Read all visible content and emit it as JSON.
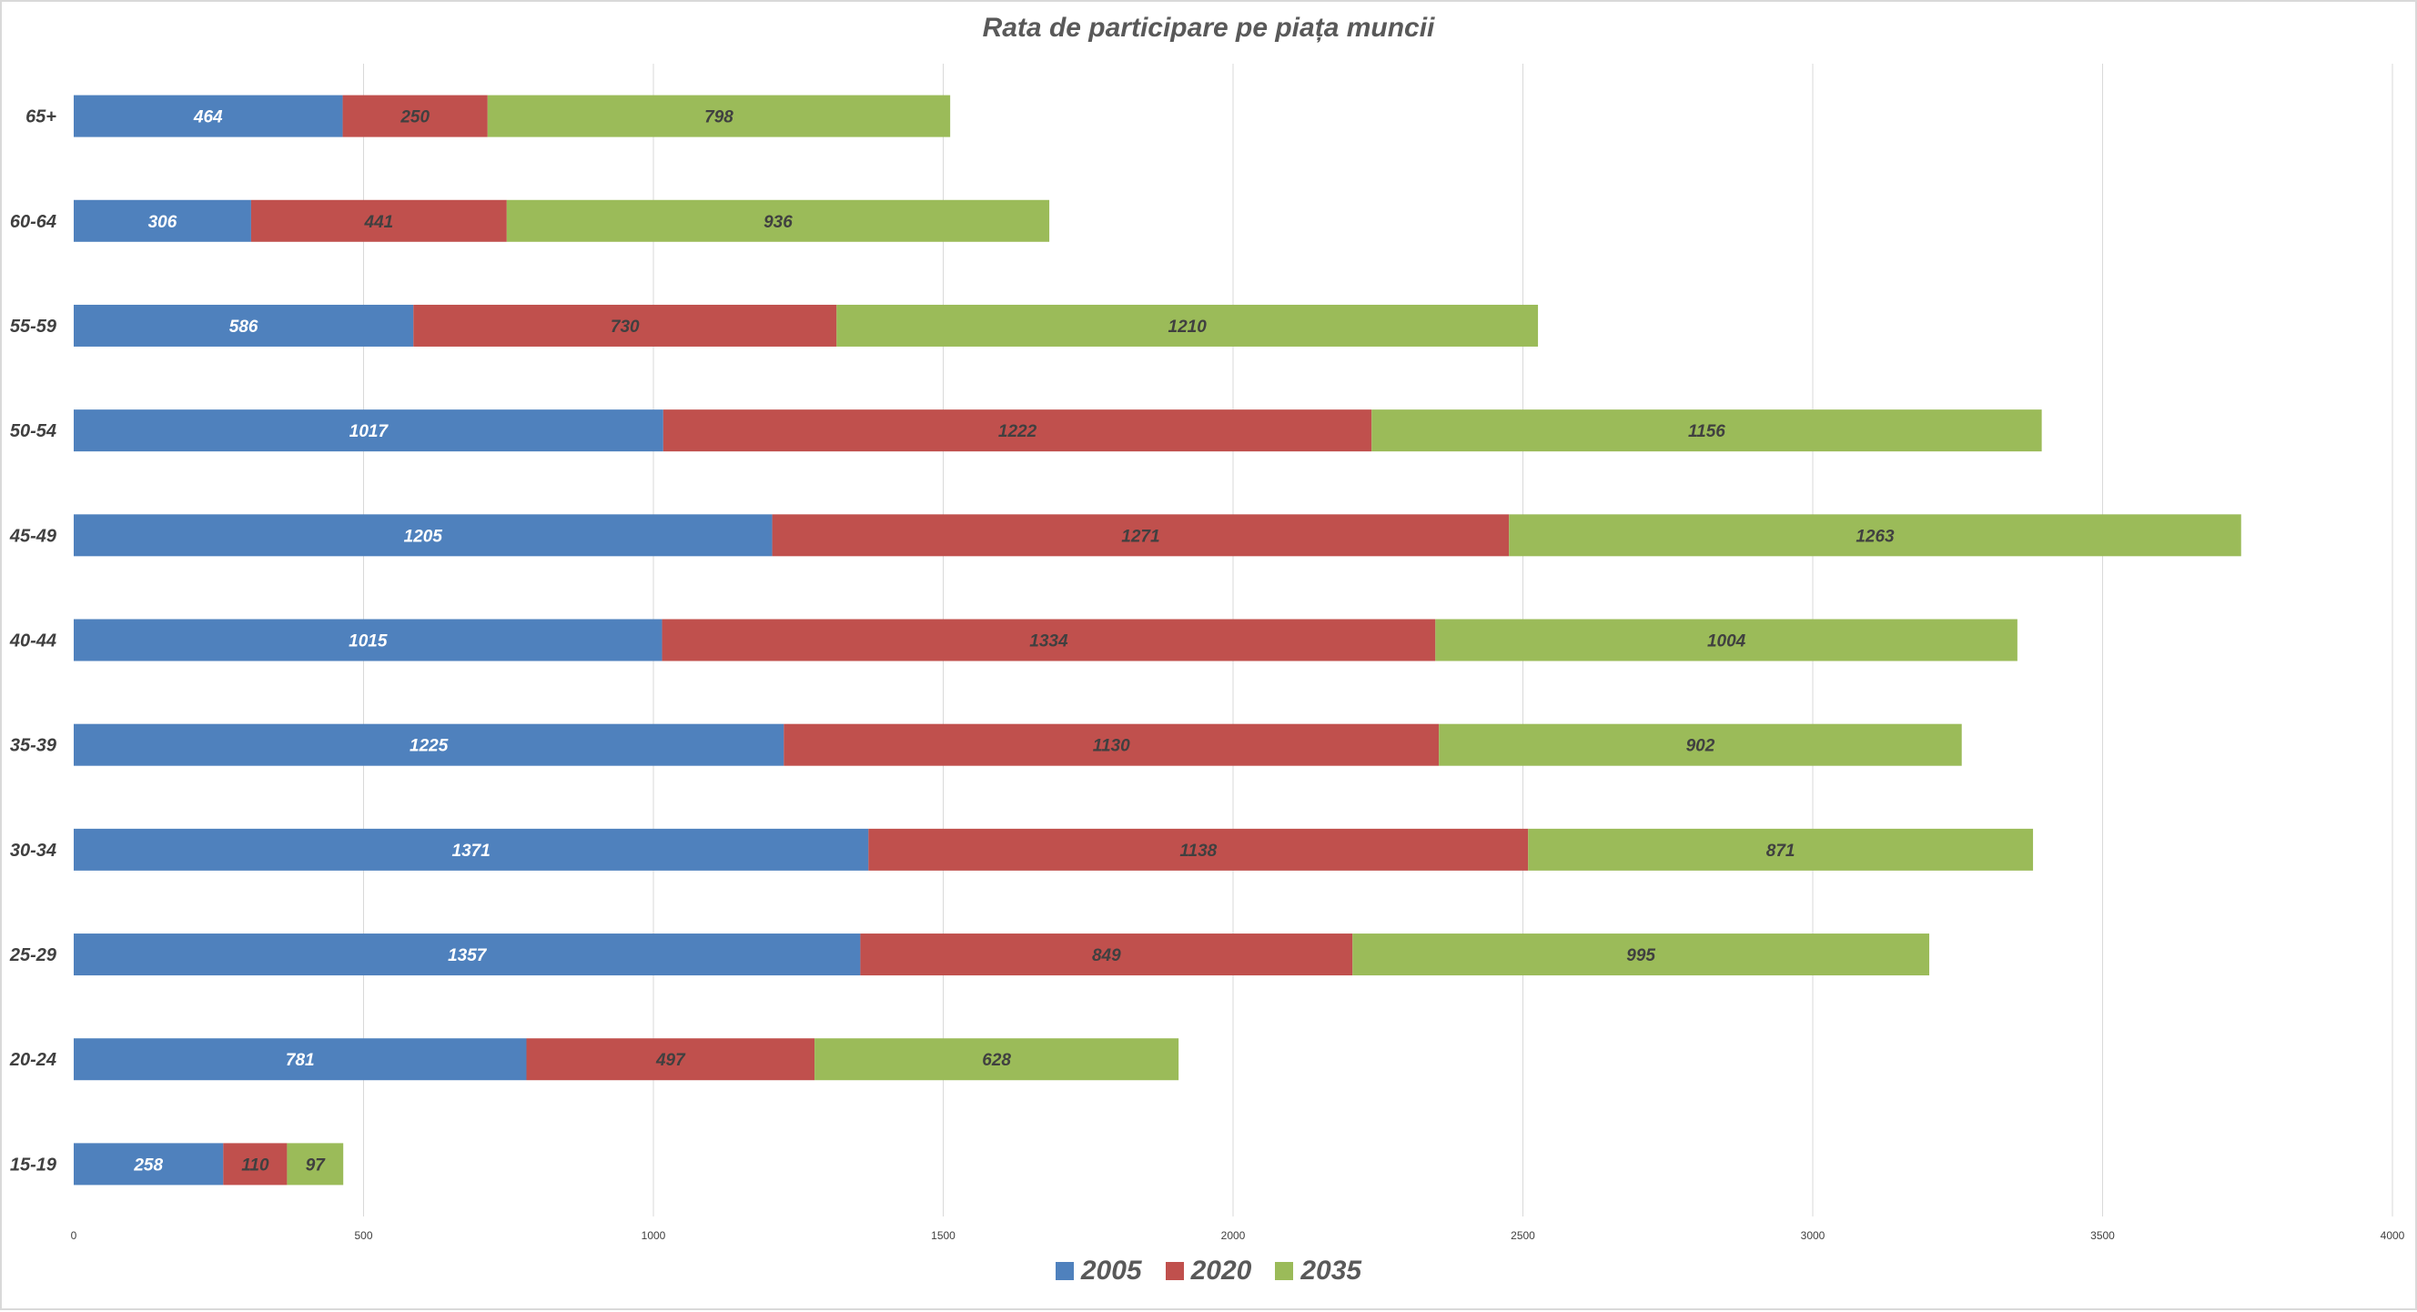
{
  "chart_data": {
    "type": "bar",
    "orientation": "horizontal",
    "stacked": true,
    "title": "Rata de participare pe piața muncii",
    "categories": [
      "65+",
      "60-64",
      "55-59",
      "50-54",
      "45-49",
      "40-44",
      "35-39",
      "30-34",
      "25-29",
      "20-24",
      "15-19"
    ],
    "series": [
      {
        "name": "2005",
        "color": "#4f81bd",
        "label_color": "#ffffff",
        "values": [
          464,
          306,
          586,
          1017,
          1205,
          1015,
          1225,
          1371,
          1357,
          781,
          258
        ]
      },
      {
        "name": "2020",
        "color": "#c0504d",
        "label_color": "#404040",
        "values": [
          250,
          441,
          730,
          1222,
          1271,
          1334,
          1130,
          1138,
          849,
          497,
          110
        ]
      },
      {
        "name": "2035",
        "color": "#9bbb59",
        "label_color": "#404040",
        "values": [
          798,
          936,
          1210,
          1156,
          1263,
          1004,
          902,
          871,
          995,
          628,
          97
        ]
      }
    ],
    "xlim": [
      0,
      4000
    ],
    "xticks": [
      0,
      500,
      1000,
      1500,
      2000,
      2500,
      3000,
      3500,
      4000
    ],
    "xgrid": true,
    "legend_position": "bottom",
    "data_labels": true
  }
}
